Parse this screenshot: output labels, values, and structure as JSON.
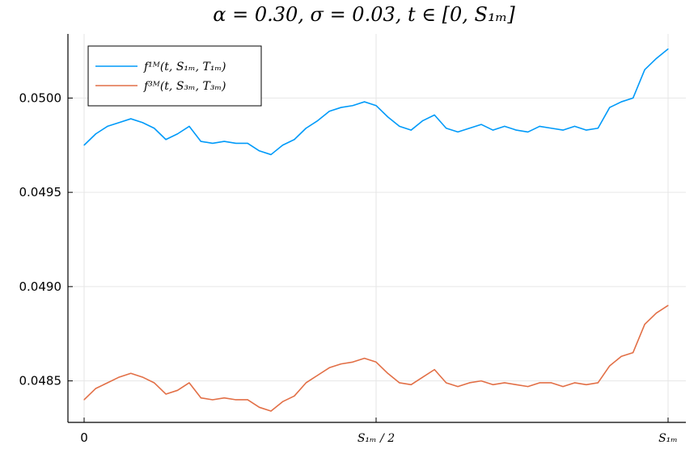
{
  "chart_data": {
    "type": "line",
    "title": "α = 0.30,  σ = 0.03,  t ∈ [0, S₁ₘ]",
    "xlabel": "",
    "ylabel": "",
    "xlim": [
      0,
      1
    ],
    "ylim": [
      0.04828,
      0.05034
    ],
    "grid": true,
    "legend_position": "top-left",
    "yticks": [
      {
        "value": 0.0485,
        "label": "0.0485"
      },
      {
        "value": 0.049,
        "label": "0.0490"
      },
      {
        "value": 0.0495,
        "label": "0.0495"
      },
      {
        "value": 0.05,
        "label": "0.0500"
      }
    ],
    "xticks": [
      {
        "value": 0,
        "label": "0"
      },
      {
        "value": 0.5,
        "label": "S₁ₘ / 2"
      },
      {
        "value": 1,
        "label": "S₁ₘ"
      }
    ],
    "x": [
      0.0,
      0.02,
      0.04,
      0.06,
      0.08,
      0.1,
      0.12,
      0.14,
      0.16,
      0.18,
      0.2,
      0.22,
      0.24,
      0.26,
      0.28,
      0.3,
      0.32,
      0.34,
      0.36,
      0.38,
      0.4,
      0.42,
      0.44,
      0.46,
      0.48,
      0.5,
      0.52,
      0.54,
      0.56,
      0.58,
      0.6,
      0.62,
      0.64,
      0.66,
      0.68,
      0.7,
      0.72,
      0.74,
      0.76,
      0.78,
      0.8,
      0.82,
      0.84,
      0.86,
      0.88,
      0.9,
      0.92,
      0.94,
      0.96,
      0.98,
      1.0
    ],
    "series": [
      {
        "name": "f¹ᴹ(t, S₁ₘ, T₁ₘ)",
        "color": "#009af9",
        "values": [
          0.04975,
          0.04981,
          0.04985,
          0.04987,
          0.04989,
          0.04987,
          0.04984,
          0.04978,
          0.04981,
          0.04985,
          0.04977,
          0.04976,
          0.04977,
          0.04976,
          0.04976,
          0.04972,
          0.0497,
          0.04975,
          0.04978,
          0.04984,
          0.04988,
          0.04993,
          0.04995,
          0.04996,
          0.04998,
          0.04996,
          0.0499,
          0.04985,
          0.04983,
          0.04988,
          0.04991,
          0.04984,
          0.04982,
          0.04984,
          0.04986,
          0.04983,
          0.04985,
          0.04983,
          0.04982,
          0.04985,
          0.04984,
          0.04983,
          0.04985,
          0.04983,
          0.04984,
          0.04995,
          0.04998,
          0.05,
          0.05015,
          0.05021,
          0.05026
        ]
      },
      {
        "name": "f³ᴹ(t, S₃ₘ, T₃ₘ)",
        "color": "#e26f46",
        "values": [
          0.0484,
          0.04846,
          0.04849,
          0.04852,
          0.04854,
          0.04852,
          0.04849,
          0.04843,
          0.04845,
          0.04849,
          0.04841,
          0.0484,
          0.04841,
          0.0484,
          0.0484,
          0.04836,
          0.04834,
          0.04839,
          0.04842,
          0.04849,
          0.04853,
          0.04857,
          0.04859,
          0.0486,
          0.04862,
          0.0486,
          0.04854,
          0.04849,
          0.04848,
          0.04852,
          0.04856,
          0.04849,
          0.04847,
          0.04849,
          0.0485,
          0.04848,
          0.04849,
          0.04848,
          0.04847,
          0.04849,
          0.04849,
          0.04847,
          0.04849,
          0.04848,
          0.04849,
          0.04858,
          0.04863,
          0.04865,
          0.0488,
          0.04886,
          0.0489
        ]
      }
    ]
  }
}
